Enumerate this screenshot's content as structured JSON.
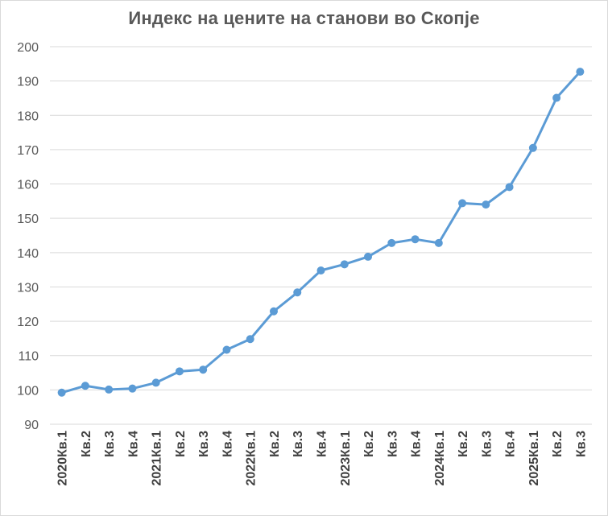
{
  "chart_data": {
    "type": "line",
    "title": "Индекс на цените на станови во Скопје",
    "ylim": [
      90,
      200
    ],
    "yticks": [
      90,
      100,
      110,
      120,
      130,
      140,
      150,
      160,
      170,
      180,
      190,
      200
    ],
    "grid": true,
    "colors": {
      "line": "#5b9bd5",
      "grid": "#d9d9d9"
    },
    "categories": [
      {
        "year": "2020",
        "q": "Кв.1"
      },
      {
        "year": "",
        "q": "Кв.2"
      },
      {
        "year": "",
        "q": "Кв.3"
      },
      {
        "year": "",
        "q": "Кв.4"
      },
      {
        "year": "2021",
        "q": "Кв.1"
      },
      {
        "year": "",
        "q": "Кв.2"
      },
      {
        "year": "",
        "q": "Кв.3"
      },
      {
        "year": "",
        "q": "Кв.4"
      },
      {
        "year": "2022",
        "q": "Кв.1"
      },
      {
        "year": "",
        "q": "Кв.2"
      },
      {
        "year": "",
        "q": "Кв.3"
      },
      {
        "year": "",
        "q": "Кв.4"
      },
      {
        "year": "2023",
        "q": "Кв.1"
      },
      {
        "year": "",
        "q": "Кв.2"
      },
      {
        "year": "",
        "q": "Кв.3"
      },
      {
        "year": "",
        "q": "Кв.4"
      },
      {
        "year": "2024",
        "q": "Кв.1"
      },
      {
        "year": "",
        "q": "Кв.2"
      },
      {
        "year": "",
        "q": "Кв.3"
      },
      {
        "year": "",
        "q": "Кв.4"
      },
      {
        "year": "2025",
        "q": "Кв.1"
      },
      {
        "year": "",
        "q": "Кв.2"
      },
      {
        "year": "",
        "q": "Кв.3"
      }
    ],
    "values": [
      99.2,
      101.2,
      100.1,
      100.4,
      102.1,
      105.4,
      105.9,
      111.7,
      114.8,
      122.9,
      128.4,
      134.8,
      136.6,
      138.8,
      142.8,
      143.9,
      142.8,
      154.4,
      154.0,
      159.1,
      170.5,
      185.1,
      192.7
    ]
  }
}
